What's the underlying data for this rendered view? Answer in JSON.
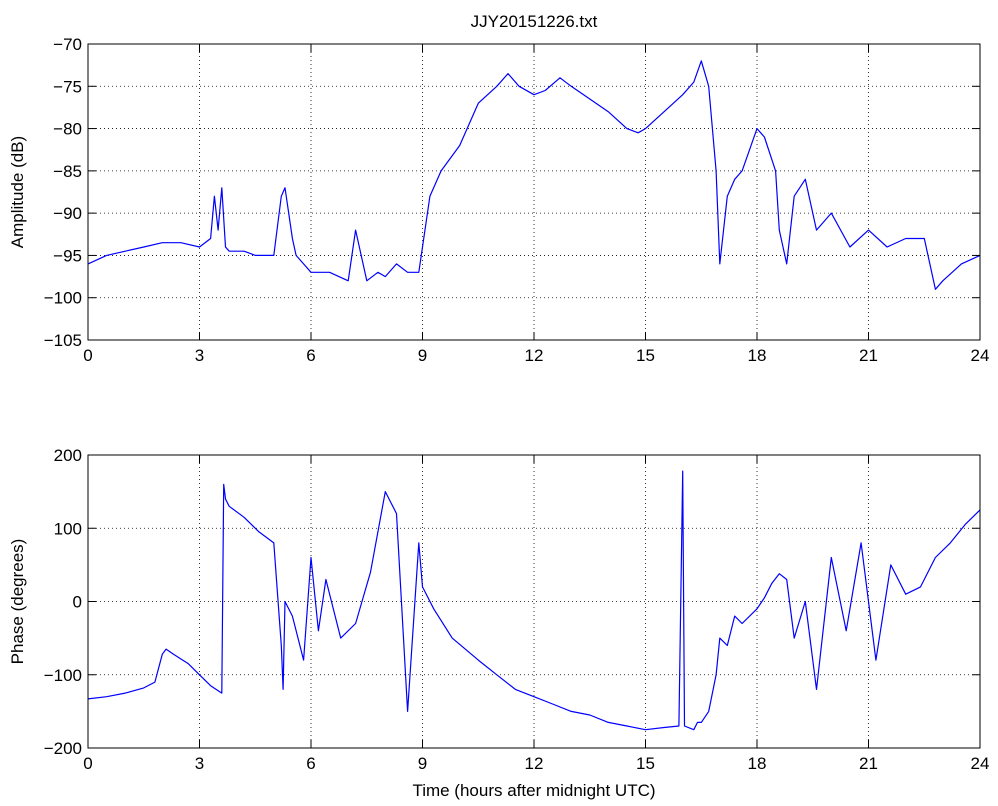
{
  "figure": {
    "title": "JJY20151226.txt"
  },
  "chart_data": [
    {
      "type": "line",
      "title": "JJY20151226.txt",
      "xlabel": "",
      "ylabel": "Amplitude (dB)",
      "xlim": [
        0,
        24
      ],
      "ylim": [
        -105,
        -70
      ],
      "xticks": [
        0,
        3,
        6,
        9,
        12,
        15,
        18,
        21,
        24
      ],
      "yticks": [
        -105,
        -100,
        -95,
        -90,
        -85,
        -80,
        -75,
        -70
      ],
      "grid": true,
      "line_color": "#0000ff",
      "series": [
        {
          "x": [
            0,
            0.5,
            1.0,
            1.5,
            2.0,
            2.5,
            3.0,
            3.3,
            3.4,
            3.5,
            3.6,
            3.7,
            3.8,
            4.0,
            4.2,
            4.5,
            4.8,
            5.0,
            5.2,
            5.3,
            5.5,
            5.6,
            5.8,
            6.0,
            6.5,
            7.0,
            7.2,
            7.5,
            7.8,
            8.0,
            8.3,
            8.6,
            8.9,
            9.0,
            9.2,
            9.5,
            10.0,
            10.5,
            11.0,
            11.3,
            11.6,
            12.0,
            12.3,
            12.7,
            13.0,
            13.5,
            14.0,
            14.5,
            14.8,
            15.0,
            15.5,
            16.0,
            16.3,
            16.5,
            16.7,
            16.9,
            17.0,
            17.2,
            17.4,
            17.6,
            18.0,
            18.2,
            18.5,
            18.6,
            18.8,
            19.0,
            19.3,
            19.6,
            20.0,
            20.5,
            21.0,
            21.5,
            22.0,
            22.5,
            22.8,
            23.0,
            23.5,
            24.0
          ],
          "y": [
            -96,
            -95,
            -94.5,
            -94,
            -93.5,
            -93.5,
            -94,
            -93,
            -88,
            -92,
            -87,
            -94,
            -94.5,
            -94.5,
            -94.5,
            -95,
            -95,
            -95,
            -88,
            -87,
            -93,
            -95,
            -96,
            -97,
            -97,
            -98,
            -92,
            -98,
            -97,
            -97.5,
            -96,
            -97,
            -97,
            -94,
            -88,
            -85,
            -82,
            -77,
            -75,
            -73.5,
            -75,
            -76,
            -75.5,
            -74,
            -75,
            -76.5,
            -78,
            -80,
            -80.5,
            -80,
            -78,
            -76,
            -74.5,
            -72,
            -75,
            -85,
            -96,
            -88,
            -86,
            -85,
            -80,
            -81,
            -85,
            -92,
            -96,
            -88,
            -86,
            -92,
            -90,
            -94,
            -92,
            -94,
            -93,
            -93,
            -99,
            -98,
            -96,
            -95
          ]
        }
      ]
    },
    {
      "type": "line",
      "title": "",
      "xlabel": "Time (hours after midnight UTC)",
      "ylabel": "Phase (degrees)",
      "xlim": [
        0,
        24
      ],
      "ylim": [
        -200,
        200
      ],
      "xticks": [
        0,
        3,
        6,
        9,
        12,
        15,
        18,
        21,
        24
      ],
      "yticks": [
        -200,
        -100,
        0,
        100,
        200
      ],
      "grid": true,
      "line_color": "#0000ff",
      "series": [
        {
          "x": [
            0,
            0.5,
            1.0,
            1.5,
            1.8,
            2.0,
            2.1,
            2.3,
            2.7,
            3.0,
            3.3,
            3.6,
            3.65,
            3.7,
            3.8,
            4.2,
            4.6,
            5.0,
            5.2,
            5.25,
            5.3,
            5.5,
            5.8,
            6.0,
            6.2,
            6.4,
            6.8,
            7.2,
            7.6,
            8.0,
            8.3,
            8.6,
            8.9,
            9.0,
            9.3,
            9.8,
            10.5,
            11.0,
            11.5,
            12.0,
            12.5,
            13.0,
            13.5,
            14.0,
            14.5,
            15.0,
            15.5,
            15.9,
            16.0,
            16.05,
            16.3,
            16.4,
            16.5,
            16.7,
            16.9,
            17.0,
            17.2,
            17.4,
            17.6,
            18.0,
            18.2,
            18.4,
            18.6,
            18.8,
            19.0,
            19.3,
            19.6,
            20.0,
            20.4,
            20.8,
            21.2,
            21.6,
            22.0,
            22.4,
            22.8,
            23.2,
            23.6,
            24.0
          ],
          "y": [
            -133,
            -130,
            -125,
            -118,
            -110,
            -72,
            -65,
            -72,
            -85,
            -100,
            -115,
            -125,
            160,
            140,
            130,
            115,
            95,
            80,
            -60,
            -120,
            0,
            -20,
            -80,
            60,
            -40,
            30,
            -50,
            -30,
            40,
            150,
            120,
            -150,
            80,
            20,
            -10,
            -50,
            -80,
            -100,
            -120,
            -130,
            -140,
            -150,
            -155,
            -165,
            -170,
            -175,
            -172,
            -170,
            178,
            -170,
            -175,
            -165,
            -165,
            -150,
            -100,
            -50,
            -60,
            -20,
            -30,
            -10,
            5,
            25,
            38,
            30,
            -50,
            0,
            -120,
            60,
            -40,
            80,
            -80,
            50,
            10,
            20,
            60,
            80,
            105,
            125
          ]
        }
      ]
    }
  ]
}
